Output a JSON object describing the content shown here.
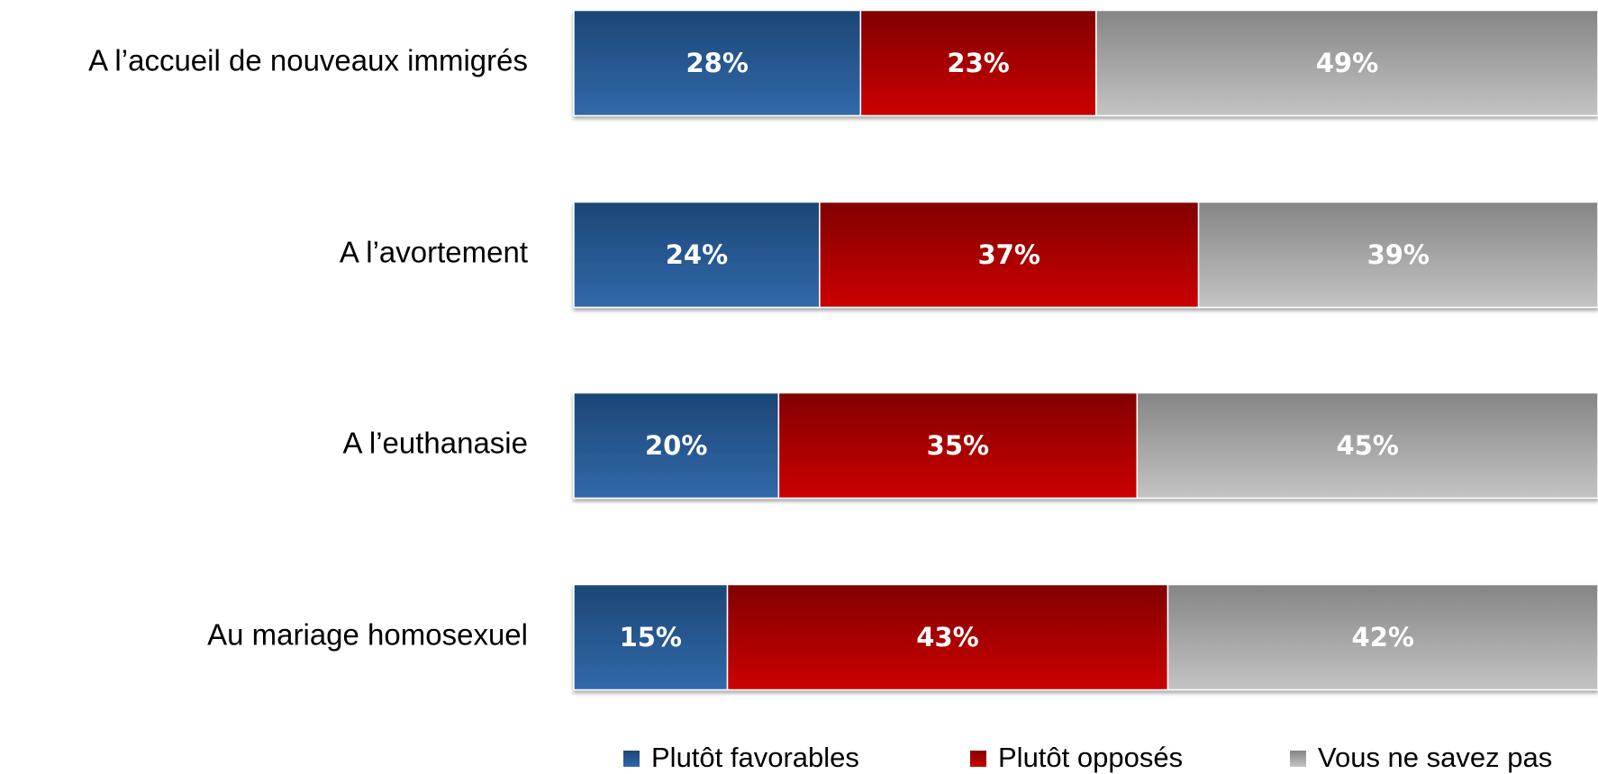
{
  "chart_data": {
    "type": "stacked-bar-horizontal",
    "categories": [
      "A l’accueil de nouveaux immigrés",
      "A l’avortement",
      "A l’euthanasie",
      "Au mariage homosexuel"
    ],
    "series": [
      {
        "name": "Plutôt favorables",
        "color": "#2a5d96",
        "values": [
          28,
          24,
          20,
          15
        ],
        "value_labels": [
          "28%",
          "24%",
          "20%",
          "15%"
        ]
      },
      {
        "name": "Plutôt opposés",
        "color": "#b80000",
        "values": [
          23,
          37,
          35,
          43
        ],
        "value_labels": [
          "23%",
          "37%",
          "35%",
          "43%"
        ]
      },
      {
        "name": "Vous ne savez pas",
        "color": "#a6a6a6",
        "values": [
          49,
          39,
          45,
          42
        ],
        "value_labels": [
          "49%",
          "39%",
          "45%",
          "42%"
        ]
      }
    ],
    "legend": "bottom"
  }
}
